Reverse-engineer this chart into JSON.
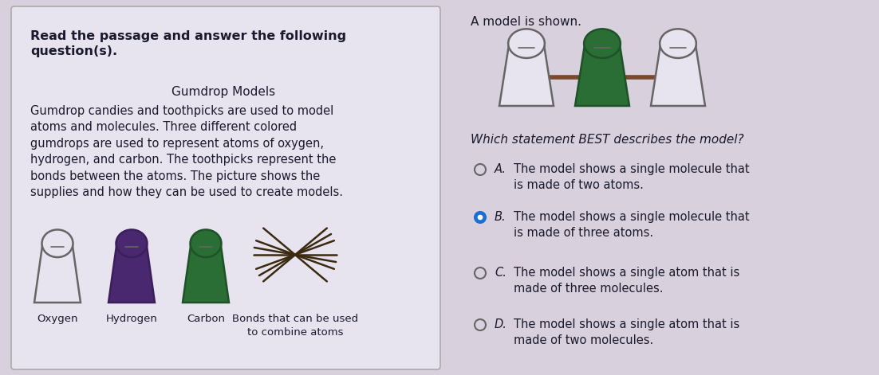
{
  "bg_color": "#d8d0dc",
  "left_panel_bg": "#e8e4ef",
  "text_color": "#1a1a2e",
  "title_bold": "Read the passage and answer the following\nquestion(s).",
  "passage_title": "Gumdrop Models",
  "passage_body": "Gumdrop candies and toothpicks are used to model\natoms and molecules. Three different colored\ngumdrops are used to represent atoms of oxygen,\nhydrogen, and carbon. The toothpicks represent the\nbonds between the atoms. The picture shows the\nsupplies and how they can be used to create models.",
  "legend_labels": [
    "Oxygen",
    "Hydrogen",
    "Carbon",
    "Bonds that can be used\nto combine atoms"
  ],
  "gumdrop_colors": [
    "#e8e4ef",
    "#4a2870",
    "#2a6e35"
  ],
  "gumdrop_outlines": [
    "#666666",
    "#3a1f5a",
    "#1e5228"
  ],
  "right_title": "A model is shown.",
  "molecule_colors": [
    "#e8e4ef",
    "#2a6e35",
    "#e8e4ef"
  ],
  "molecule_outlines": [
    "#666666",
    "#1e5228",
    "#666666"
  ],
  "question": "Which statement BEST describes the model?",
  "options": [
    {
      "label": "A.",
      "text": "The model shows a single molecule that\nis made of two atoms.",
      "selected": false
    },
    {
      "label": "B.",
      "text": "The model shows a single molecule that\nis made of three atoms.",
      "selected": true
    },
    {
      "label": "C.",
      "text": "The model shows a single atom that is\nmade of three molecules.",
      "selected": false
    },
    {
      "label": "D.",
      "text": "The model shows a single atom that is\nmade of two molecules.",
      "selected": false
    }
  ],
  "selected_color": "#1a6fd4",
  "unselected_color": "#666666",
  "font_size_body": 10.5,
  "font_size_title": 11.5
}
